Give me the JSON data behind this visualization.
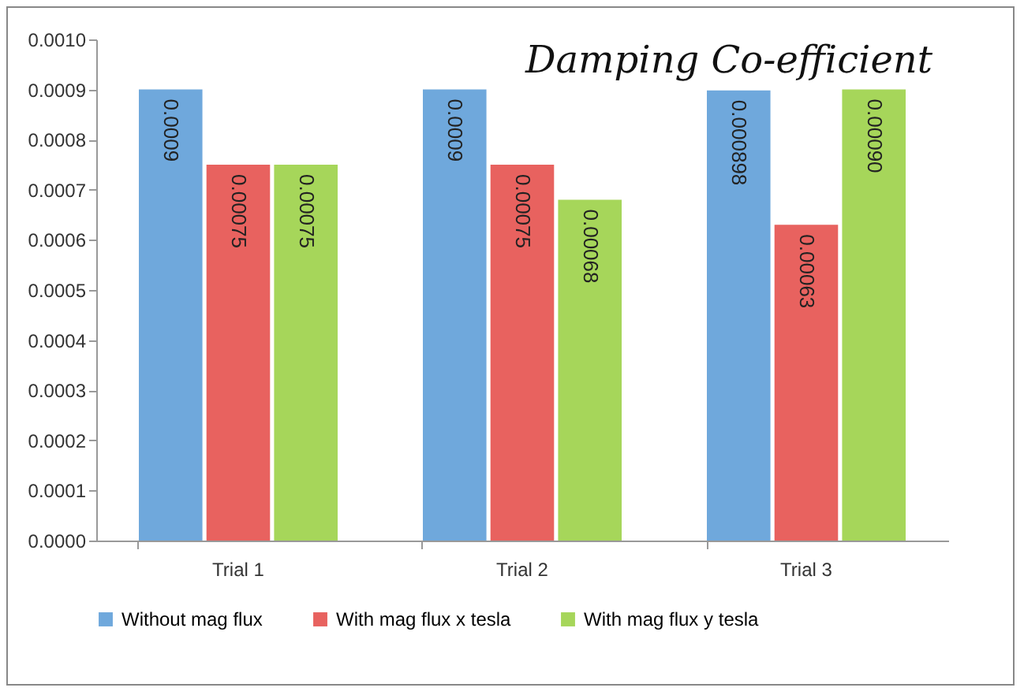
{
  "chart_data": {
    "type": "bar",
    "title": "Damping  Co-efficient",
    "categories": [
      "Trial 1",
      "Trial 2",
      "Trial 3"
    ],
    "series": [
      {
        "name": "Without mag flux",
        "color": "#6fa8dc",
        "values": [
          0.0009,
          0.0009,
          0.000898
        ],
        "value_labels": [
          "0.0009",
          "0.0009",
          "0.000898"
        ]
      },
      {
        "name": "With mag flux x tesla",
        "color": "#e8625f",
        "values": [
          0.00075,
          0.00075,
          0.00063
        ],
        "value_labels": [
          "0.00075",
          "0.00075",
          "0.00063"
        ]
      },
      {
        "name": "With mag flux y tesla",
        "color": "#a6d65a",
        "values": [
          0.00075,
          0.00068,
          0.0009
        ],
        "value_labels": [
          "0.00075",
          "0.00068",
          "0.00090"
        ]
      }
    ],
    "ylim": [
      0,
      0.001
    ],
    "yticks": [
      {
        "value": 0,
        "label": "0.0000"
      },
      {
        "value": 0.0001,
        "label": "0.0001"
      },
      {
        "value": 0.0002,
        "label": "0.0002"
      },
      {
        "value": 0.0003,
        "label": "0.0003"
      },
      {
        "value": 0.0004,
        "label": "0.0004"
      },
      {
        "value": 0.0005,
        "label": "0.0005"
      },
      {
        "value": 0.0006,
        "label": "0.0006"
      },
      {
        "value": 0.0007,
        "label": "0.0007"
      },
      {
        "value": 0.0008,
        "label": "0.0008"
      },
      {
        "value": 0.0009,
        "label": "0.0009"
      },
      {
        "value": 0.001,
        "label": "0.0010"
      }
    ],
    "grid": false,
    "legend": "bottom"
  }
}
